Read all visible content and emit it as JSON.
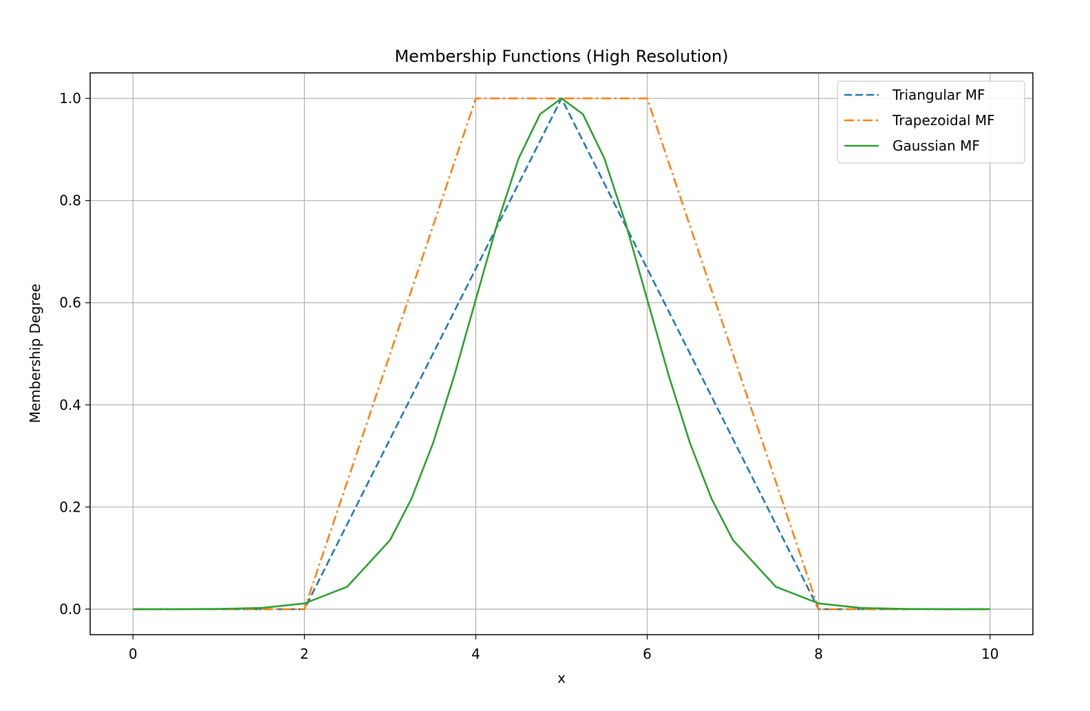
{
  "chart_data": {
    "type": "line",
    "title": "Membership Functions (High Resolution)",
    "xlabel": "x",
    "ylabel": "Membership Degree",
    "xlim": [
      -0.5,
      10.5
    ],
    "ylim": [
      -0.05,
      1.05
    ],
    "x_ticks": [
      "0",
      "2",
      "4",
      "6",
      "8",
      "10"
    ],
    "y_ticks": [
      "0.0",
      "0.2",
      "0.4",
      "0.6",
      "0.8",
      "1.0"
    ],
    "grid": true,
    "legend_position": "top-right",
    "series": [
      {
        "name": "Triangular MF",
        "color": "#1f77b4",
        "style": "dashed",
        "x": [
          0,
          2,
          5,
          8,
          10
        ],
        "y": [
          0,
          0,
          1,
          0,
          0
        ]
      },
      {
        "name": "Trapezoidal MF",
        "color": "#ff7f0e",
        "style": "dashdot",
        "x": [
          0,
          2,
          4,
          6,
          8,
          10
        ],
        "y": [
          0,
          0,
          1,
          1,
          0,
          0
        ]
      },
      {
        "name": "Gaussian MF",
        "color": "#2ca02c",
        "style": "solid",
        "x": [
          0,
          0.5,
          1,
          1.5,
          2,
          2.5,
          3,
          3.25,
          3.5,
          3.75,
          4,
          4.25,
          4.5,
          4.75,
          5,
          5.25,
          5.5,
          5.75,
          6,
          6.25,
          6.5,
          6.75,
          7,
          7.5,
          8,
          8.5,
          9,
          9.5,
          10
        ],
        "y": [
          0.0,
          0.0,
          0.0003,
          0.0022,
          0.0111,
          0.0439,
          0.1353,
          0.2163,
          0.3247,
          0.4578,
          0.6065,
          0.7548,
          0.8825,
          0.9692,
          1.0,
          0.9692,
          0.8825,
          0.7548,
          0.6065,
          0.4578,
          0.3247,
          0.2163,
          0.1353,
          0.0439,
          0.0111,
          0.0022,
          0.0003,
          0.0,
          0.0
        ]
      }
    ]
  }
}
